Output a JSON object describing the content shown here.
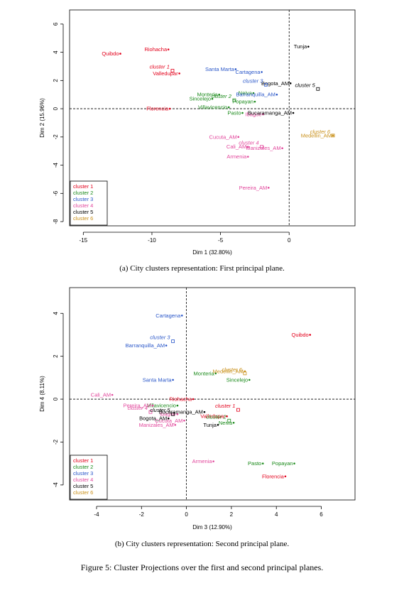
{
  "colors": {
    "cluster1": "#e3001b",
    "cluster2": "#1a8a1a",
    "cluster3": "#2a57c9",
    "cluster4": "#e2479c",
    "cluster5": "#000000",
    "cluster6": "#c9901a"
  },
  "captions": {
    "a": "(a) City clusters representation: First principal plane.",
    "b": "(b) City clusters representation: Second principal plane.",
    "figure": "Figure 5: Cluster Projections over the first and second principal planes."
  },
  "chart_data": [
    {
      "type": "scatter",
      "xlabel": "Dim 1 (32.80%)",
      "ylabel": "Dim 2 (15.96%)",
      "xlim": [
        -16,
        4.8
      ],
      "ylim": [
        -8.3,
        7
      ],
      "xticks": [
        -15,
        -10,
        -5,
        0
      ],
      "yticks": [
        -8,
        -6,
        -4,
        -2,
        0,
        2,
        4,
        6
      ],
      "legend_position": "bottom-left",
      "legend": [
        "cluster 1",
        "cluster 2",
        "cluster 3",
        "cluster 4",
        "cluster 5",
        "cluster 6"
      ],
      "points": [
        {
          "label": "Quibdo",
          "x": -12.3,
          "y": 3.9,
          "cluster": 1
        },
        {
          "label": "Riohacha",
          "x": -8.8,
          "y": 4.2,
          "cluster": 1
        },
        {
          "label": "Valledupar",
          "x": -8.0,
          "y": 2.5,
          "cluster": 1
        },
        {
          "label": "Florencia",
          "x": -8.7,
          "y": 0.0,
          "cluster": 1
        },
        {
          "label": "Sincelejo",
          "x": -5.6,
          "y": 0.7,
          "cluster": 2
        },
        {
          "label": "Monteria",
          "x": -5.1,
          "y": 1.0,
          "cluster": 2
        },
        {
          "label": "Villavicencio",
          "x": -4.4,
          "y": 0.1,
          "cluster": 2
        },
        {
          "label": "Pasto",
          "x": -3.4,
          "y": -0.3,
          "cluster": 2
        },
        {
          "label": "Neiva",
          "x": -2.6,
          "y": 1.1,
          "cluster": 2
        },
        {
          "label": "Popayan",
          "x": -2.5,
          "y": 0.5,
          "cluster": 2
        },
        {
          "label": "Santa Marta",
          "x": -3.9,
          "y": 2.8,
          "cluster": 3
        },
        {
          "label": "Cartagena",
          "x": -2.0,
          "y": 2.6,
          "cluster": 3
        },
        {
          "label": "Barranquilla_AM",
          "x": -0.9,
          "y": 1.0,
          "cluster": 3
        },
        {
          "label": "Ibague",
          "x": -1.9,
          "y": -0.4,
          "cluster": 4
        },
        {
          "label": "Cucuta_AM",
          "x": -3.7,
          "y": -2.0,
          "cluster": 4
        },
        {
          "label": "Cali_AM",
          "x": -3.0,
          "y": -2.7,
          "cluster": 4
        },
        {
          "label": "Armenia",
          "x": -3.0,
          "y": -3.4,
          "cluster": 4
        },
        {
          "label": "Manizales_AM",
          "x": -0.5,
          "y": -2.8,
          "cluster": 4
        },
        {
          "label": "Pereira_AM",
          "x": -1.5,
          "y": -5.6,
          "cluster": 4
        },
        {
          "label": "Tunja",
          "x": 1.4,
          "y": 4.4,
          "cluster": 5
        },
        {
          "label": "Bogota_AM",
          "x": 0.1,
          "y": 1.8,
          "cluster": 5
        },
        {
          "label": "Bucaramanga_AM",
          "x": 0.3,
          "y": -0.3,
          "cluster": 5
        },
        {
          "label": "Medellin_AM",
          "x": 3.2,
          "y": -1.9,
          "cluster": 6
        }
      ],
      "centroids": [
        {
          "label": "cluster 1",
          "x": -8.5,
          "y": 2.7,
          "cluster": 1
        },
        {
          "label": "cluster 2",
          "x": -4.0,
          "y": 0.6,
          "cluster": 2
        },
        {
          "label": "cluster 3",
          "x": -1.7,
          "y": 1.7,
          "cluster": 3
        },
        {
          "label": "cluster 4",
          "x": -2.0,
          "y": -2.7,
          "cluster": 4
        },
        {
          "label": "cluster 5",
          "x": 2.1,
          "y": 1.4,
          "cluster": 5
        },
        {
          "label": "cluster 6",
          "x": 3.2,
          "y": -1.9,
          "cluster": 6
        }
      ]
    },
    {
      "type": "scatter",
      "xlabel": "Dim 3 (12.90%)",
      "ylabel": "Dim 4 (8.11%)",
      "xlim": [
        -5.2,
        7.5
      ],
      "ylim": [
        -4.7,
        5.2
      ],
      "xticks": [
        -4,
        -2,
        0,
        2,
        4,
        6
      ],
      "yticks": [
        -4,
        -2,
        0,
        2,
        4
      ],
      "legend_position": "bottom-left",
      "legend": [
        "cluster 1",
        "cluster 2",
        "cluster 3",
        "cluster 4",
        "cluster 5",
        "cluster 6"
      ],
      "points": [
        {
          "label": "Quibdo",
          "x": 5.5,
          "y": 3.0,
          "cluster": 1
        },
        {
          "label": "Riohacha",
          "x": 0.3,
          "y": 0.0,
          "cluster": 1
        },
        {
          "label": "Valledupar",
          "x": 1.8,
          "y": -0.8,
          "cluster": 1
        },
        {
          "label": "Florencia",
          "x": 4.4,
          "y": -3.6,
          "cluster": 1
        },
        {
          "label": "Monteria",
          "x": 1.3,
          "y": 1.2,
          "cluster": 2
        },
        {
          "label": "Sincelejo",
          "x": 2.8,
          "y": 0.9,
          "cluster": 2
        },
        {
          "label": "Villavicencio",
          "x": -0.4,
          "y": -0.3,
          "cluster": 2
        },
        {
          "label": "Neiva",
          "x": 2.1,
          "y": -1.1,
          "cluster": 2
        },
        {
          "label": "Pasto",
          "x": 3.4,
          "y": -3.0,
          "cluster": 2
        },
        {
          "label": "Popayan",
          "x": 4.8,
          "y": -3.0,
          "cluster": 2
        },
        {
          "label": "Cartagena",
          "x": -0.2,
          "y": 3.9,
          "cluster": 3
        },
        {
          "label": "Barranquilla_AM",
          "x": -0.9,
          "y": 2.5,
          "cluster": 3
        },
        {
          "label": "Santa Marta",
          "x": -0.6,
          "y": 0.9,
          "cluster": 3
        },
        {
          "label": "Cali_AM",
          "x": -3.3,
          "y": 0.2,
          "cluster": 4
        },
        {
          "label": "Pereira_AM",
          "x": -1.5,
          "y": -0.3,
          "cluster": 4
        },
        {
          "label": "Ibague",
          "x": -0.4,
          "y": -0.7,
          "cluster": 4
        },
        {
          "label": "Cucuta_AM",
          "x": -0.1,
          "y": -1.0,
          "cluster": 4
        },
        {
          "label": "Manizales_AM",
          "x": -0.5,
          "y": -1.2,
          "cluster": 4
        },
        {
          "label": "Armenia",
          "x": 1.2,
          "y": -2.9,
          "cluster": 4
        },
        {
          "label": "Bogota_AM",
          "x": -0.8,
          "y": -0.9,
          "cluster": 5
        },
        {
          "label": "Bucaramanga_AM",
          "x": 0.8,
          "y": -0.6,
          "cluster": 5
        },
        {
          "label": "Tunja",
          "x": 1.4,
          "y": -1.2,
          "cluster": 5
        },
        {
          "label": "Medellin_AM",
          "x": 2.6,
          "y": 1.3,
          "cluster": 6
        }
      ],
      "centroids": [
        {
          "label": "cluster 1",
          "x": 2.3,
          "y": -0.5,
          "cluster": 1
        },
        {
          "label": "cluster 2",
          "x": 1.9,
          "y": -1.0,
          "cluster": 2
        },
        {
          "label": "cluster 3",
          "x": -0.6,
          "y": 2.7,
          "cluster": 3
        },
        {
          "label": "cluster 4",
          "x": -1.6,
          "y": -0.6,
          "cluster": 4
        },
        {
          "label": "cluster 5",
          "x": -0.6,
          "y": -0.7,
          "cluster": 5
        },
        {
          "label": "cluster 6",
          "x": 2.6,
          "y": 1.2,
          "cluster": 6
        }
      ]
    }
  ]
}
